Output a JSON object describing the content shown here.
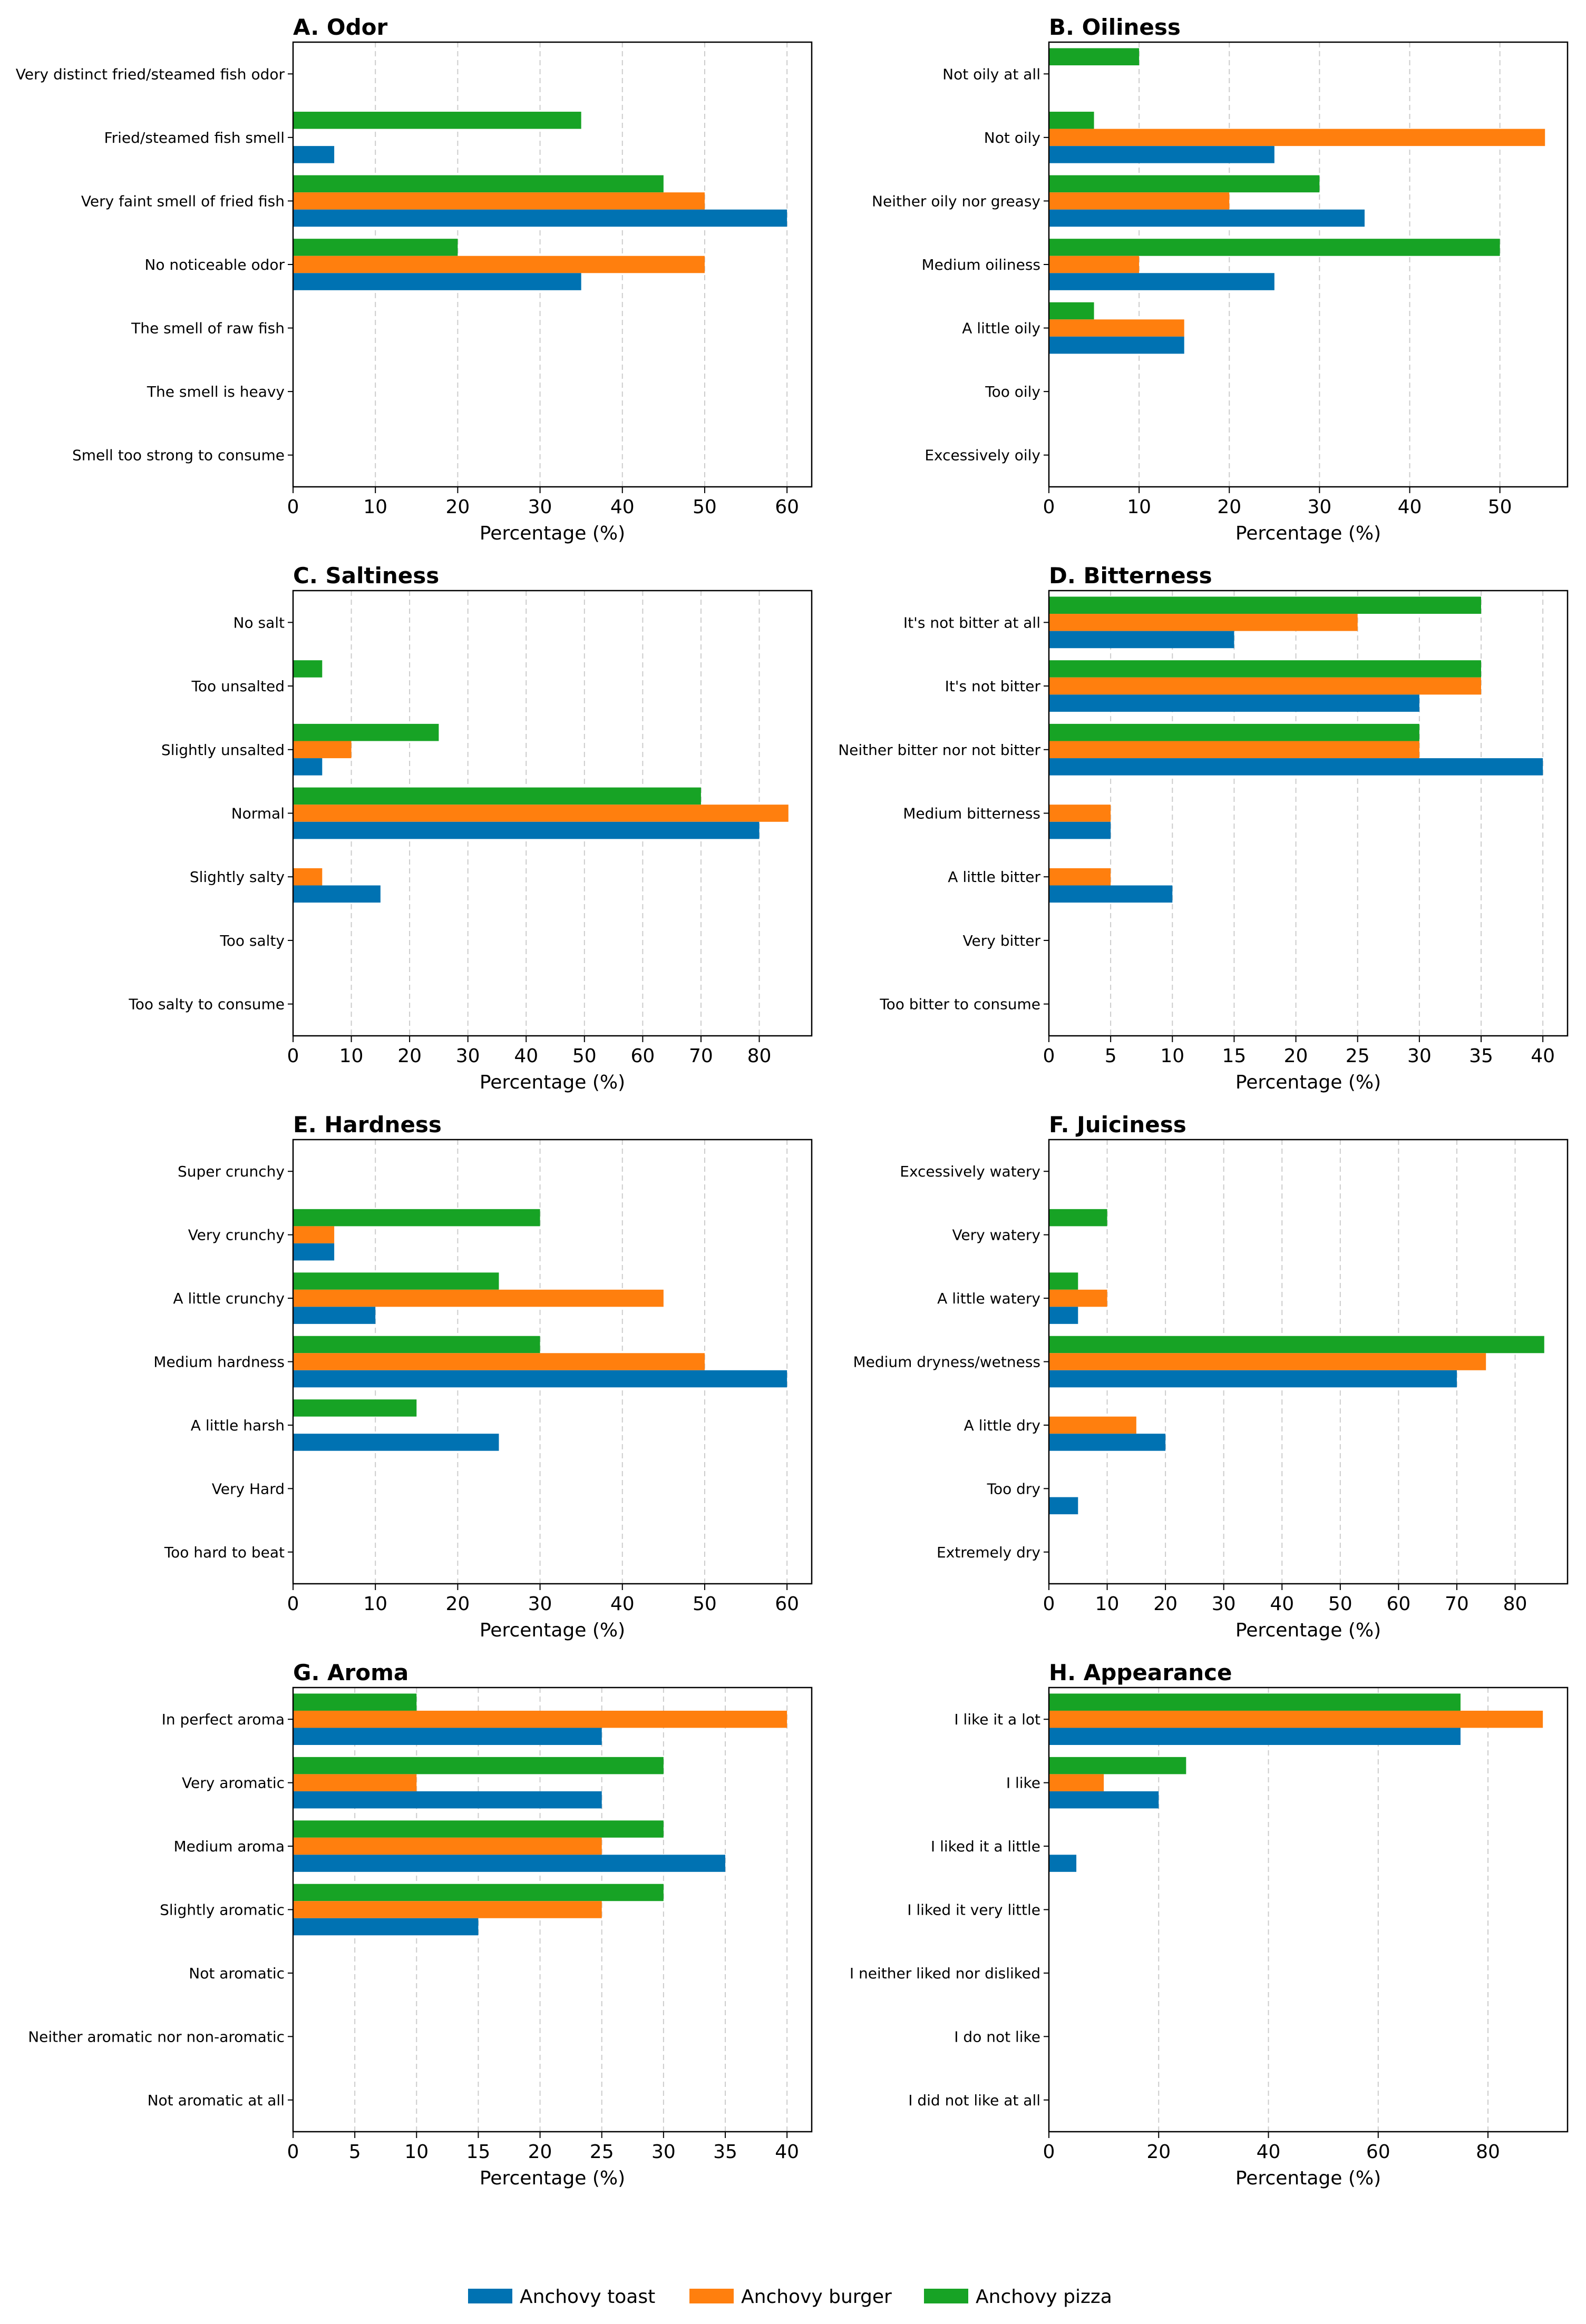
{
  "colors": {
    "toast": "#0072b2",
    "burger": "#ff7f0e",
    "pizza": "#17a325",
    "grid": "#cccccc"
  },
  "legend": {
    "labels": [
      "Anchovy toast",
      "Anchovy burger",
      "Anchovy pizza"
    ]
  },
  "chart_data": [
    {
      "type": "bar",
      "orientation": "horizontal",
      "title": "A. Odor",
      "xlabel": "Percentage (%)",
      "xlim": [
        0,
        63
      ],
      "xticks": [
        0,
        10,
        20,
        30,
        40,
        50,
        60
      ],
      "categories": [
        "Very distinct fried/steamed fish odor",
        "Fried/steamed fish smell",
        "Very faint smell of fried fish",
        "No noticeable odor",
        "The smell of raw fish",
        "The smell is heavy",
        "Smell too strong to consume"
      ],
      "series": [
        {
          "name": "Anchovy toast",
          "values": [
            0,
            5,
            60,
            35,
            0,
            0,
            0
          ]
        },
        {
          "name": "Anchovy burger",
          "values": [
            0,
            0,
            50,
            50,
            0,
            0,
            0
          ]
        },
        {
          "name": "Anchovy pizza",
          "values": [
            0,
            35,
            45,
            20,
            0,
            0,
            0
          ]
        }
      ]
    },
    {
      "type": "bar",
      "orientation": "horizontal",
      "title": "B. Oiliness",
      "xlabel": "Percentage (%)",
      "xlim": [
        0,
        57.5
      ],
      "xticks": [
        0,
        10,
        20,
        30,
        40,
        50
      ],
      "categories": [
        "Not oily at all",
        "Not oily",
        "Neither oily nor greasy",
        "Medium oiliness",
        "A little oily",
        "Too oily",
        "Excessively oily"
      ],
      "series": [
        {
          "name": "Anchovy toast",
          "values": [
            0,
            25,
            35,
            25,
            15,
            0,
            0
          ]
        },
        {
          "name": "Anchovy burger",
          "values": [
            0,
            55,
            20,
            10,
            15,
            0,
            0
          ]
        },
        {
          "name": "Anchovy pizza",
          "values": [
            10,
            5,
            30,
            50,
            5,
            0,
            0
          ]
        }
      ]
    },
    {
      "type": "bar",
      "orientation": "horizontal",
      "title": "C. Saltiness",
      "xlabel": "Percentage (%)",
      "xlim": [
        0,
        89
      ],
      "xticks": [
        0,
        10,
        20,
        30,
        40,
        50,
        60,
        70,
        80
      ],
      "categories": [
        "No salt",
        "Too unsalted",
        "Slightly unsalted",
        "Normal",
        "Slightly salty",
        "Too salty",
        "Too salty to consume"
      ],
      "series": [
        {
          "name": "Anchovy toast",
          "values": [
            0,
            0,
            5,
            80,
            15,
            0,
            0
          ]
        },
        {
          "name": "Anchovy burger",
          "values": [
            0,
            0,
            10,
            85,
            5,
            0,
            0
          ]
        },
        {
          "name": "Anchovy pizza",
          "values": [
            0,
            5,
            25,
            70,
            0,
            0,
            0
          ]
        }
      ]
    },
    {
      "type": "bar",
      "orientation": "horizontal",
      "title": "D. Bitterness",
      "xlabel": "Percentage (%)",
      "xlim": [
        0,
        42
      ],
      "xticks": [
        0,
        5,
        10,
        15,
        20,
        25,
        30,
        35,
        40
      ],
      "categories": [
        "It's not bitter at all",
        "It's not bitter",
        "Neither bitter nor not bitter",
        "Medium bitterness",
        "A little bitter",
        "Very bitter",
        "Too bitter to consume"
      ],
      "series": [
        {
          "name": "Anchovy toast",
          "values": [
            15,
            30,
            40,
            5,
            10,
            0,
            0
          ]
        },
        {
          "name": "Anchovy burger",
          "values": [
            25,
            35,
            30,
            5,
            5,
            0,
            0
          ]
        },
        {
          "name": "Anchovy pizza",
          "values": [
            35,
            35,
            30,
            0,
            0,
            0,
            0
          ]
        }
      ]
    },
    {
      "type": "bar",
      "orientation": "horizontal",
      "title": "E. Hardness",
      "xlabel": "Percentage (%)",
      "xlim": [
        0,
        63
      ],
      "xticks": [
        0,
        10,
        20,
        30,
        40,
        50,
        60
      ],
      "categories": [
        "Super crunchy",
        "Very crunchy",
        "A little crunchy",
        "Medium hardness",
        "A little harsh",
        "Very Hard",
        "Too hard to beat"
      ],
      "series": [
        {
          "name": "Anchovy toast",
          "values": [
            0,
            5,
            10,
            60,
            25,
            0,
            0
          ]
        },
        {
          "name": "Anchovy burger",
          "values": [
            0,
            5,
            45,
            50,
            0,
            0,
            0
          ]
        },
        {
          "name": "Anchovy pizza",
          "values": [
            0,
            30,
            25,
            30,
            15,
            0,
            0
          ]
        }
      ]
    },
    {
      "type": "bar",
      "orientation": "horizontal",
      "title": "F. Juiciness",
      "xlabel": "Percentage (%)",
      "xlim": [
        0,
        89
      ],
      "xticks": [
        0,
        10,
        20,
        30,
        40,
        50,
        60,
        70,
        80
      ],
      "categories": [
        "Excessively watery",
        "Very watery",
        "A little watery",
        "Medium dryness/wetness",
        "A little dry",
        "Too dry",
        "Extremely dry"
      ],
      "series": [
        {
          "name": "Anchovy toast",
          "values": [
            0,
            0,
            5,
            70,
            20,
            5,
            0
          ]
        },
        {
          "name": "Anchovy burger",
          "values": [
            0,
            0,
            10,
            75,
            15,
            0,
            0
          ]
        },
        {
          "name": "Anchovy pizza",
          "values": [
            0,
            10,
            5,
            85,
            0,
            0,
            0
          ]
        }
      ]
    },
    {
      "type": "bar",
      "orientation": "horizontal",
      "title": "G. Aroma",
      "xlabel": "Percentage (%)",
      "xlim": [
        0,
        42
      ],
      "xticks": [
        0,
        5,
        10,
        15,
        20,
        25,
        30,
        35,
        40
      ],
      "categories": [
        "In perfect aroma",
        "Very aromatic",
        "Medium aroma",
        "Slightly aromatic",
        "Not aromatic",
        "Neither aromatic nor non-aromatic",
        "Not aromatic at all"
      ],
      "series": [
        {
          "name": "Anchovy toast",
          "values": [
            25,
            25,
            35,
            15,
            0,
            0,
            0
          ]
        },
        {
          "name": "Anchovy burger",
          "values": [
            40,
            10,
            25,
            25,
            0,
            0,
            0
          ]
        },
        {
          "name": "Anchovy pizza",
          "values": [
            10,
            30,
            30,
            30,
            0,
            0,
            0
          ]
        }
      ]
    },
    {
      "type": "bar",
      "orientation": "horizontal",
      "title": "H. Appearance",
      "xlabel": "Percentage (%)",
      "xlim": [
        0,
        94.5
      ],
      "xticks": [
        0,
        20,
        40,
        60,
        80
      ],
      "categories": [
        "I like it a lot",
        "I like",
        "I liked it a little",
        "I liked it very little",
        "I neither liked nor disliked",
        "I do not like",
        "I did not like at all"
      ],
      "series": [
        {
          "name": "Anchovy toast",
          "values": [
            75,
            20,
            5,
            0,
            0,
            0,
            0
          ]
        },
        {
          "name": "Anchovy burger",
          "values": [
            90,
            10,
            0,
            0,
            0,
            0,
            0
          ]
        },
        {
          "name": "Anchovy pizza",
          "values": [
            75,
            25,
            0,
            0,
            0,
            0,
            0
          ]
        }
      ]
    }
  ]
}
